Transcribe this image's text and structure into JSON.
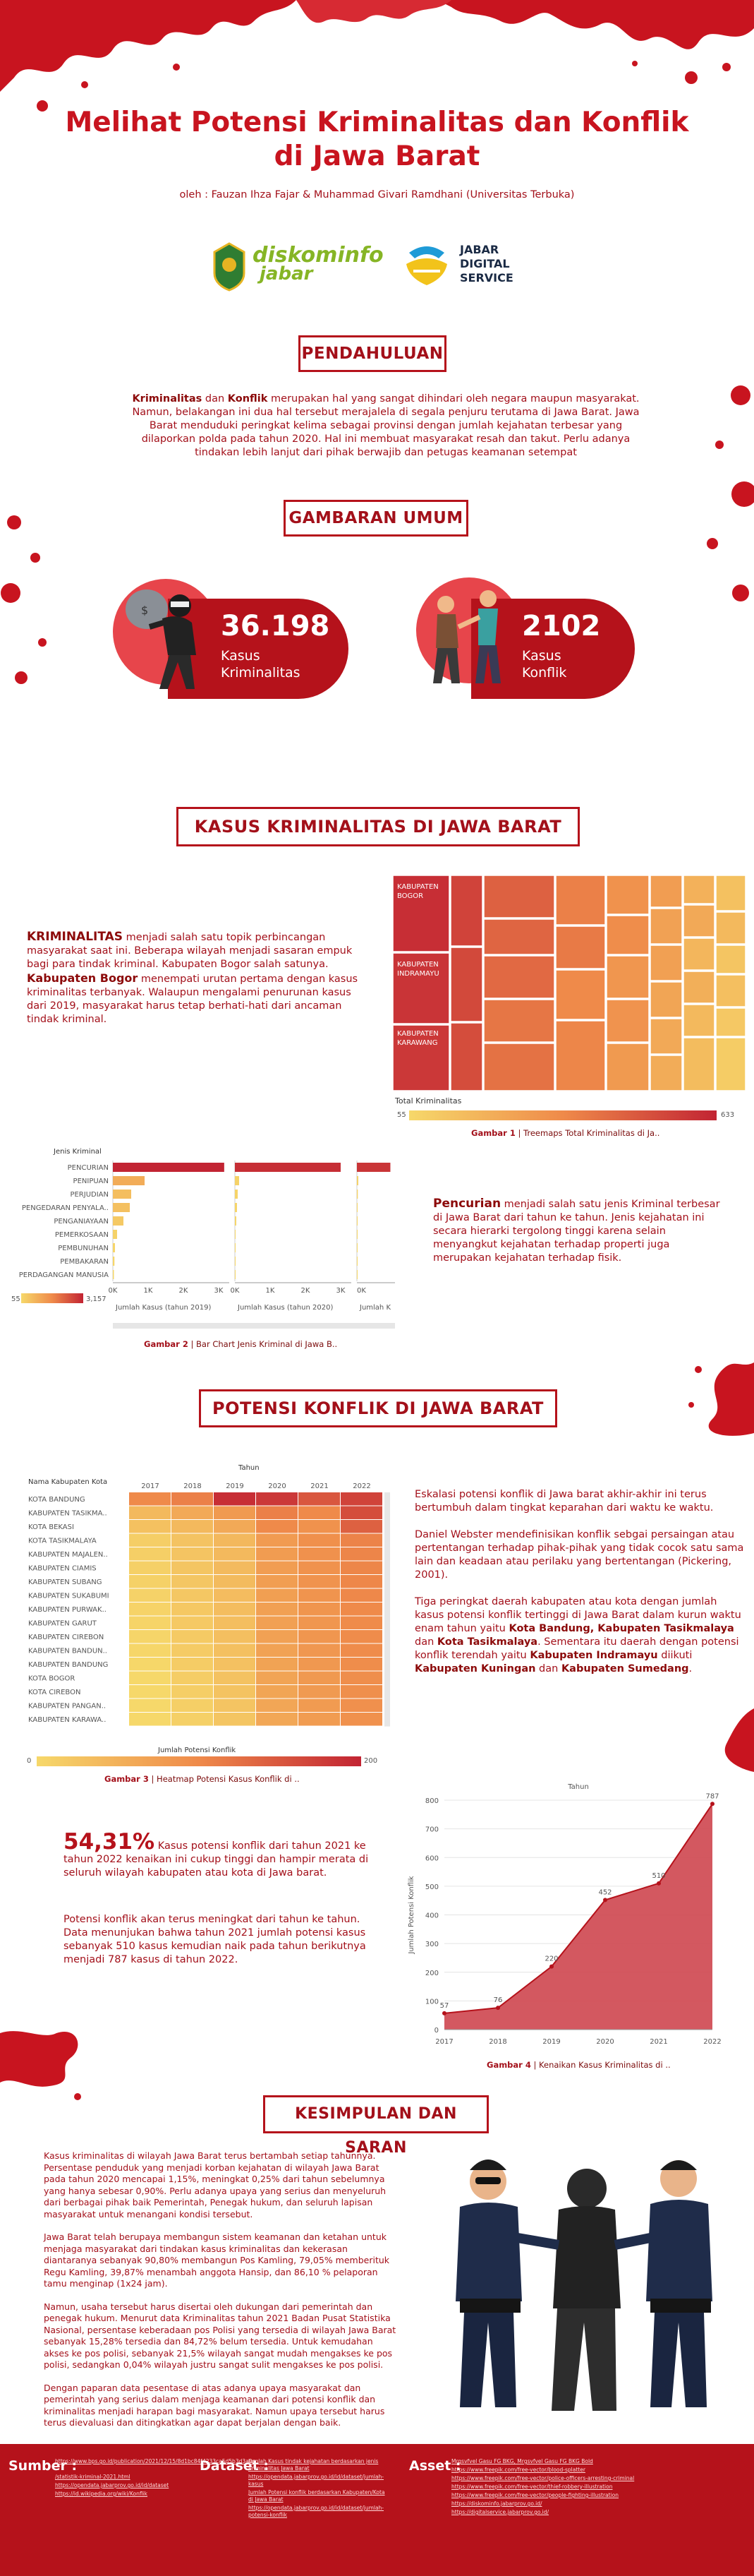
{
  "header": {
    "title_line1": "Melihat Potensi Kriminalitas dan Konflik",
    "title_line2": "di Jawa Barat",
    "authors": "oleh : Fauzan Ihza Fajar & Muhammad Givari Ramdhani (Universitas Terbuka)",
    "logo1_text_a": "diskominfo",
    "logo1_text_b": "jabar",
    "logo2_line1": "JABAR",
    "logo2_line2": "DIGITAL",
    "logo2_line3": "SERVICE"
  },
  "pendahuluan": {
    "heading": "PENDAHULUAN",
    "b1": "Kriminalitas",
    "t1": " dan ",
    "b2": "Konflik",
    "t2": " merupakan hal yang sangat dihindari oleh negara maupun masyarakat. Namun, belakangan ini dua hal tersebut merajalela di segala penjuru terutama di Jawa Barat. Jawa Barat menduduki peringkat kelima sebagai provinsi dengan jumlah kejahatan terbesar yang dilaporkan polda pada tahun 2020. Hal ini membuat masyarakat resah dan takut. Perlu adanya tindakan lebih lanjut dari pihak berwajib dan petugas keamanan setempat"
  },
  "gambaran": {
    "heading": "GAMBARAN UMUM",
    "stat1_value": "36.198",
    "stat1_label1": "Kasus",
    "stat1_label2": "Kriminalitas",
    "stat2_value": "2102",
    "stat2_label1": "Kasus",
    "stat2_label2": "Konflik"
  },
  "kriminal": {
    "heading": "KASUS KRIMINALITAS DI JAWA BARAT",
    "para_b": "KRIMINALITAS",
    "para_t1": " menjadi salah satu topik perbincangan masyarakat saat ini. Beberapa wilayah menjadi sasaran empuk bagi para tindak kriminal. Kabupaten Bogor salah satunya. ",
    "para_b2": "Kabupaten Bogor",
    "para_t2": " menempati urutan pertama dengan kasus kriminalitas terbanyak. Walaupun mengalami penurunan kasus dari 2019, masyarakat harus tetap berhati-hati dari ancaman tindak kriminal.",
    "treemap_labels": [
      "KABUPATEN BOGOR",
      "KABUPATEN INDRAMAYU",
      "KABUPATEN KARAWANG"
    ],
    "treemap_legend_title": "Total Kriminalitas",
    "treemap_legend_min": "55",
    "treemap_legend_max": "633",
    "caption1_b": "Gambar 1",
    "caption1_t": " | Treemaps Total Kriminalitas di Ja..",
    "bar_header": "Jenis Kriminal",
    "bar_categories": [
      "PENCURIAN",
      "PENIPUAN",
      "PERJUDIAN",
      "PENGEDARAN PENYALA..",
      "PENGANIAYAAN",
      "PEMERKOSAAN",
      "PEMBUNUHAN",
      "PEMBAKARAN",
      "PERDAGANGAN MANUSIA"
    ],
    "bar_ticks": [
      "0K",
      "1K",
      "2K",
      "3K"
    ],
    "bar_panel_labels": [
      "Jumlah Kasus (tahun 2019)",
      "Jumlah Kasus (tahun 2020)",
      "Jumlah K"
    ],
    "bar_legend_min": "55",
    "bar_legend_max": "3,157",
    "caption2_b": "Gambar 2",
    "caption2_t": " | Bar Chart Jenis Kriminal di Jawa B..",
    "pencurian_b": "Pencurian",
    "pencurian_t": " menjadi salah satu jenis Kriminal terbesar di Jawa Barat dari tahun ke tahun. Jenis kejahatan ini secara hierarki tergolong tinggi karena selain menyangkut kejahatan terhadap properti juga merupakan kejahatan terhadap fisik."
  },
  "konflik": {
    "heading": "POTENSI KONFLIK DI JAWA BARAT",
    "heat_col_header": "Tahun",
    "heat_row_header": "Nama Kabupaten Kota",
    "heat_years": [
      "2017",
      "2018",
      "2019",
      "2020",
      "2021",
      "2022"
    ],
    "heat_rows": [
      "KOTA BANDUNG",
      "KABUPATEN TASIKMA..",
      "KOTA BEKASI",
      "KOTA TASIKMALAYA",
      "KABUPATEN MAJALEN..",
      "KABUPATEN CIAMIS",
      "KABUPATEN SUBANG",
      "KABUPATEN SUKABUMI",
      "KABUPATEN PURWAK..",
      "KABUPATEN GARUT",
      "KABUPATEN CIREBON",
      "KABUPATEN BANDUN..",
      "KABUPATEN BANDUNG",
      "KOTA BOGOR",
      "KOTA CIREBON",
      "KABUPATEN PANGAN..",
      "KABUPATEN KARAWA.."
    ],
    "heat_legend_title": "Jumlah Potensi Konflik",
    "heat_legend_min": "0",
    "heat_legend_max": "200",
    "caption3_b": "Gambar 3",
    "caption3_t": " | Heatmap Potensi Kasus Konflik di ..",
    "right_p1": "Eskalasi potensi konflik di Jawa barat akhir-akhir ini terus bertumbuh dalam tingkat keparahan dari waktu ke waktu.",
    "right_p2": "Daniel Webster mendefinisikan konflik sebgai persaingan atau pertentangan terhadap pihak-pihak yang tidak cocok satu sama lain dan keadaan atau perilaku yang bertentangan (Pickering, 2001).",
    "right_p3_t1": "Tiga peringkat daerah kabupaten atau kota dengan jumlah kasus potensi konflik tertinggi di Jawa Barat dalam kurun waktu enam tahun yaitu ",
    "right_p3_b1": "Kota Bandung, Kabupaten Tasikmalaya",
    "right_p3_t2": " dan ",
    "right_p3_b2": "Kota Tasikmalaya",
    "right_p3_t3": ". Sementara itu daerah dengan potensi konflik terendah yaitu ",
    "right_p3_b3": "Kabupaten Indramayu",
    "right_p3_t4": " diikuti ",
    "right_p3_b4": "Kabupaten Kuningan",
    "right_p3_t5": " dan ",
    "right_p3_b5": "Kabupaten Sumedang",
    "right_p3_t6": ".",
    "pct_value": "54,31%",
    "pct_text": " Kasus potensi konflik dari tahun 2021 ke tahun 2022 kenaikan ini cukup tinggi dan hampir merata di seluruh wilayah kabupaten atau kota di Jawa barat.",
    "forecast_text": "Potensi konflik akan terus meningkat dari tahun ke tahun. Data menunjukan bahwa tahun 2021 jumlah potensi kasus sebanyak 510 kasus kemudian naik pada tahun berikutnya menjadi 787 kasus di tahun 2022.",
    "caption4_b": "Gambar 4",
    "caption4_t": " | Kenaikan Kasus Kriminalitas di .."
  },
  "chart_data": {
    "type": "area",
    "title": "",
    "xlabel": "Tahun",
    "ylabel": "Jumlah Potensi Konflik",
    "x": [
      "2017",
      "2018",
      "2019",
      "2020",
      "2021",
      "2022"
    ],
    "values": [
      57,
      76,
      220,
      452,
      510,
      787
    ],
    "ylim": [
      0,
      800
    ],
    "yticks": [
      "0",
      "100",
      "200",
      "300",
      "400",
      "500",
      "600",
      "700",
      "800"
    ],
    "color": "#cf4a52",
    "grid": true
  },
  "kesimpulan": {
    "heading": "KESIMPULAN DAN SARAN",
    "p1": "Kasus kriminalitas di wilayah Jawa Barat terus bertambah setiap tahunnya. Persentase penduduk yang menjadi korban kejahatan di wilayah Jawa Barat pada tahun 2020 mencapai 1,15%, meningkat 0,25% dari tahun sebelumnya yang hanya sebesar 0,90%. Perlu adanya upaya yang serius dan menyeluruh dari berbagai pihak baik Pemerintah, Penegak hukum, dan seluruh lapisan masyarakat untuk menangani kondisi tersebut.",
    "p2": "Jawa Barat telah berupaya membangun sistem keamanan dan ketahan untuk menjaga masyarakat dari tindakan kasus kriminalitas dan kekerasan diantaranya sebanyak 90,80% membangun Pos Kamling, 79,05% memberituk Regu Kamling, 39,87% menambah anggota Hansip, dan 86,10 % pelaporan tamu menginap (1x24 jam).",
    "p3": "Namun, usaha tersebut harus disertai oleh dukungan dari pemerintah dan penegak hukum. Menurut data Kriminalitas tahun 2021 Badan Pusat Statistika Nasional, persentase keberadaan pos Polisi yang tersedia di wilayah Jawa Barat sebanyak 15,28% tersedia dan 84,72% belum tersedia. Untuk kemudahan akses ke pos polisi, sebanyak 21,5% wilayah sangat mudah mengakses ke pos polisi, sedangkan 0,04% wilayah justru sangat sulit mengakses ke pos polisi.",
    "p4": "Dengan paparan data pesentase di atas adanya upaya masyarakat dan pemerintah yang serius dalam menjaga keamanan dari potensi konflik dan kriminalitas menjadi harapan bagi masyarakat. Namun upaya tersebut harus terus dievaluasi dan ditingkatkan agar dapat berjalan dengan baik."
  },
  "footer": {
    "sumber_label": "Sumber :",
    "sumber_links": [
      "https://www.bps.go.id/publication/2021/12/15/8d1bc84f4233ca5d5b3d3a0e",
      "/statistik-kriminal-2021.html",
      "https://opendata.jabarprov.go.id/id/dataset",
      "https://id.wikipedia.org/wiki/Konflik"
    ],
    "dataset_label": "Dataset :",
    "dataset_links": [
      "Jumlah Kasus tindak kejahatan berdasarkan jenis kriminalitas Jawa Barat",
      "https://opendata.jabarprov.go.id/id/dataset/jumlah-kasus",
      "Jumlah Potensi konflik berdasarkan Kabupaten/Kota di Jawa Barat",
      "https://opendata.jabarprov.go.id/id/dataset/jumlah-potensi-konflik"
    ],
    "asset_label": "Asset :",
    "asset_links": [
      "Mrgsvfvel Gasu FG BKG, Mrgsvfvel Gasu FG BKG Bold",
      "https://www.freepik.com/free-vector/blood-splatter",
      "https://www.freepik.com/free-vector/police-officers-arresting-criminal",
      "https://www.freepik.com/free-vector/thief-robbery-illustration",
      "https://www.freepik.com/free-vector/people-fighting-illustration",
      "https://diskominfo.jabarprov.go.id/",
      "https://digitalservice.jabarprov.go.id/"
    ]
  }
}
